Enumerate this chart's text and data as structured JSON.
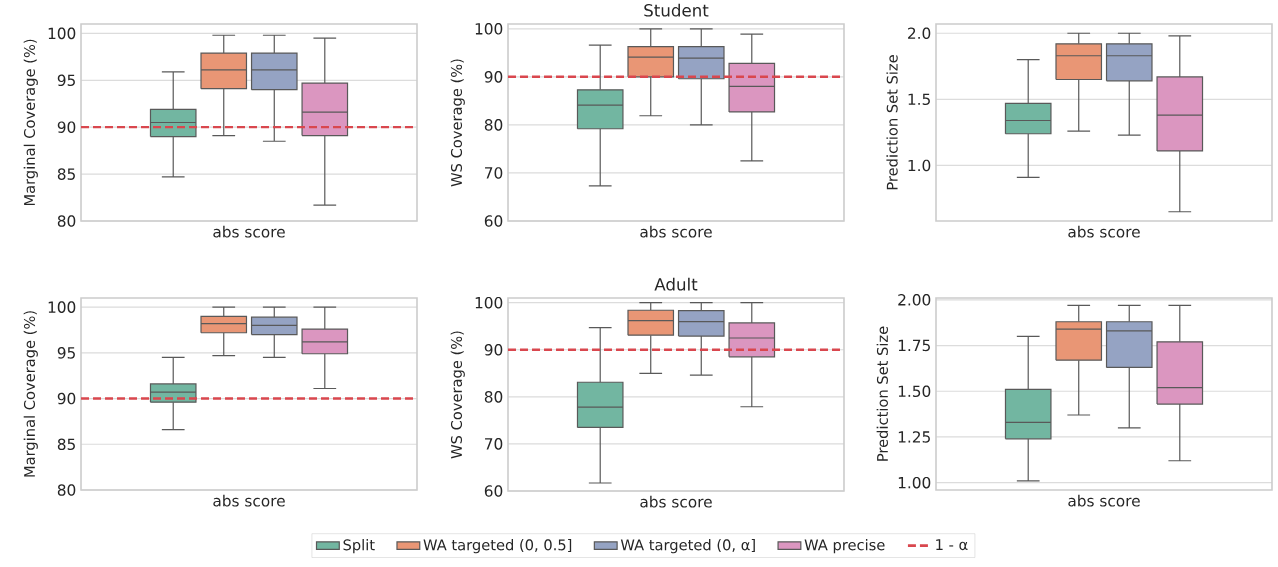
{
  "chart_data": [
    {
      "type": "box",
      "ylabel": "Marginal Coverage (%)",
      "categories": [
        "abs score"
      ],
      "ylim": [
        80,
        101
      ],
      "yticks": [
        80,
        85,
        90,
        95,
        100
      ],
      "grid": "y",
      "ref_lines": [
        {
          "axis": "y",
          "value": 90,
          "color": "#d9474e",
          "line_style": "dashed"
        }
      ],
      "series": [
        {
          "color": "#72b6a1",
          "boxes": [
            {
              "low": 84.7,
              "q1": 89.0,
              "median": 90.5,
              "q3": 91.9,
              "high": 95.9
            }
          ]
        },
        {
          "color": "#e99675",
          "boxes": [
            {
              "low": 89.1,
              "q1": 94.1,
              "median": 96.1,
              "q3": 97.9,
              "high": 99.8
            }
          ]
        },
        {
          "color": "#95a3c3",
          "boxes": [
            {
              "low": 88.5,
              "q1": 94.0,
              "median": 96.1,
              "q3": 97.9,
              "high": 99.8
            }
          ]
        },
        {
          "color": "#db96c0",
          "boxes": [
            {
              "low": 81.7,
              "q1": 89.1,
              "median": 91.6,
              "q3": 94.7,
              "high": 99.5
            }
          ]
        }
      ]
    },
    {
      "type": "box",
      "title": "Student",
      "ylabel": "WS Coverage (%)",
      "categories": [
        "abs score"
      ],
      "ylim": [
        60,
        101
      ],
      "yticks": [
        60,
        70,
        80,
        90,
        100
      ],
      "grid": "y",
      "ref_lines": [
        {
          "axis": "y",
          "value": 90,
          "color": "#d9474e",
          "line_style": "dashed"
        }
      ],
      "series": [
        {
          "color": "#72b6a1",
          "boxes": [
            {
              "low": 67.3,
              "q1": 79.2,
              "median": 84.1,
              "q3": 87.3,
              "high": 96.6
            }
          ]
        },
        {
          "color": "#e99675",
          "boxes": [
            {
              "low": 81.9,
              "q1": 90.0,
              "median": 94.1,
              "q3": 96.3,
              "high": 100
            }
          ]
        },
        {
          "color": "#95a3c3",
          "boxes": [
            {
              "low": 80.0,
              "q1": 89.6,
              "median": 93.9,
              "q3": 96.3,
              "high": 100
            }
          ]
        },
        {
          "color": "#db96c0",
          "boxes": [
            {
              "low": 72.5,
              "q1": 82.7,
              "median": 88.0,
              "q3": 92.8,
              "high": 98.9
            }
          ]
        }
      ]
    },
    {
      "type": "box",
      "ylabel": "Prediction Set Size",
      "categories": [
        "abs score"
      ],
      "ylim": [
        0.58,
        2.07
      ],
      "yticks": [
        {
          "value": 1,
          "label": "1.0"
        },
        1.5,
        {
          "value": 2,
          "label": "2.0"
        }
      ],
      "grid": "y",
      "series": [
        {
          "color": "#72b6a1",
          "boxes": [
            {
              "low": 0.91,
              "q1": 1.24,
              "median": 1.34,
              "q3": 1.47,
              "high": 1.8
            }
          ]
        },
        {
          "color": "#e99675",
          "boxes": [
            {
              "low": 1.26,
              "q1": 1.65,
              "median": 1.83,
              "q3": 1.92,
              "high": 2.0
            }
          ]
        },
        {
          "color": "#95a3c3",
          "boxes": [
            {
              "low": 1.23,
              "q1": 1.64,
              "median": 1.83,
              "q3": 1.92,
              "high": 2.0
            }
          ]
        },
        {
          "color": "#db96c0",
          "boxes": [
            {
              "low": 0.65,
              "q1": 1.11,
              "median": 1.38,
              "q3": 1.67,
              "high": 1.98
            }
          ]
        }
      ]
    },
    {
      "type": "box",
      "ylabel": "Marginal Coverage (%)",
      "categories": [
        "abs score"
      ],
      "ylim": [
        80,
        101
      ],
      "yticks": [
        80,
        85,
        90,
        95,
        100
      ],
      "grid": "y",
      "ref_lines": [
        {
          "axis": "y",
          "value": 90,
          "color": "#d9474e",
          "line_style": "dashed"
        }
      ],
      "series": [
        {
          "color": "#72b6a1",
          "boxes": [
            {
              "low": 86.6,
              "q1": 89.6,
              "median": 90.7,
              "q3": 91.6,
              "high": 94.5
            }
          ]
        },
        {
          "color": "#e99675",
          "boxes": [
            {
              "low": 94.7,
              "q1": 97.2,
              "median": 98.2,
              "q3": 99.0,
              "high": 100
            }
          ]
        },
        {
          "color": "#95a3c3",
          "boxes": [
            {
              "low": 94.5,
              "q1": 97.0,
              "median": 98.0,
              "q3": 98.9,
              "high": 100
            }
          ]
        },
        {
          "color": "#db96c0",
          "boxes": [
            {
              "low": 91.1,
              "q1": 94.9,
              "median": 96.2,
              "q3": 97.6,
              "high": 100
            }
          ]
        }
      ]
    },
    {
      "type": "box",
      "title": "Adult",
      "ylabel": "WS Coverage (%)",
      "categories": [
        "abs score"
      ],
      "ylim": [
        60,
        101
      ],
      "yticks": [
        60,
        70,
        80,
        90,
        100
      ],
      "grid": "y",
      "legend": "bottom",
      "ref_lines": [
        {
          "axis": "y",
          "value": 90,
          "color": "#d9474e",
          "line_style": "dashed",
          "label": "1 - α"
        }
      ],
      "series": [
        {
          "name": "Split",
          "color": "#72b6a1",
          "boxes": [
            {
              "low": 61.7,
              "q1": 73.5,
              "median": 77.8,
              "q3": 83.1,
              "high": 94.7
            }
          ]
        },
        {
          "name": "WA targeted (0, 0.5]",
          "color": "#e99675",
          "boxes": [
            {
              "low": 85.0,
              "q1": 93.1,
              "median": 96.2,
              "q3": 98.4,
              "high": 100
            }
          ]
        },
        {
          "name": "WA targeted (0, α]",
          "color": "#95a3c3",
          "boxes": [
            {
              "low": 84.6,
              "q1": 92.9,
              "median": 96.0,
              "q3": 98.3,
              "high": 100
            }
          ]
        },
        {
          "name": "WA precise",
          "color": "#db96c0",
          "boxes": [
            {
              "low": 77.9,
              "q1": 88.5,
              "median": 92.5,
              "q3": 95.7,
              "high": 100
            }
          ]
        }
      ]
    },
    {
      "type": "box",
      "ylabel": "Prediction Set Size",
      "categories": [
        "abs score"
      ],
      "ylim": [
        0.96,
        2.01
      ],
      "yticks": [
        {
          "value": 1,
          "label": "1.00"
        },
        1.25,
        {
          "value": 1.5,
          "label": "1.50"
        },
        1.75,
        {
          "value": 2,
          "label": "2.00"
        }
      ],
      "grid": "y",
      "series": [
        {
          "color": "#72b6a1",
          "boxes": [
            {
              "low": 1.01,
              "q1": 1.24,
              "median": 1.33,
              "q3": 1.51,
              "high": 1.8
            }
          ]
        },
        {
          "color": "#e99675",
          "boxes": [
            {
              "low": 1.37,
              "q1": 1.67,
              "median": 1.84,
              "q3": 1.88,
              "high": 1.97
            }
          ]
        },
        {
          "color": "#95a3c3",
          "boxes": [
            {
              "low": 1.3,
              "q1": 1.63,
              "median": 1.83,
              "q3": 1.88,
              "high": 1.97
            }
          ]
        },
        {
          "color": "#db96c0",
          "boxes": [
            {
              "low": 1.12,
              "q1": 1.43,
              "median": 1.52,
              "q3": 1.77,
              "high": 1.97
            }
          ]
        }
      ]
    }
  ]
}
